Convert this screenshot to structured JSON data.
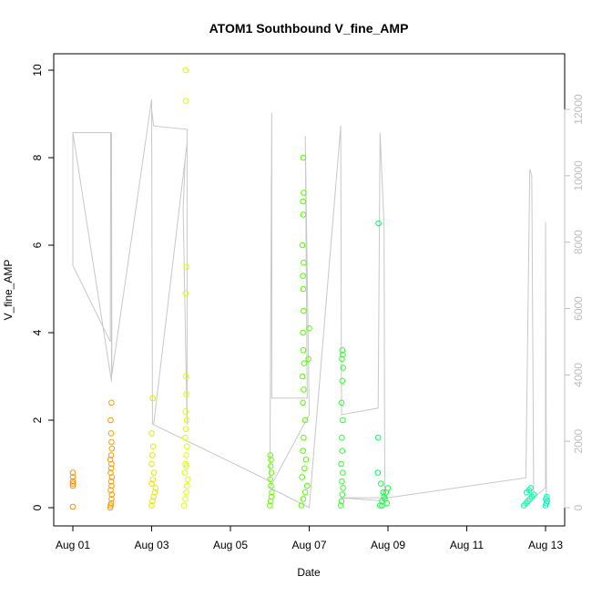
{
  "chart_data": {
    "type": "scatter",
    "title": "ATOM1 Southbound V_fine_AMP",
    "xlabel": "Date",
    "ylabel": "V_fine_AMP",
    "y2label": "",
    "x_ticks": [
      "Aug 01",
      "Aug 03",
      "Aug 05",
      "Aug 07",
      "Aug 09",
      "Aug 11",
      "Aug 13"
    ],
    "y_ticks": [
      "0",
      "2",
      "4",
      "6",
      "8",
      "10"
    ],
    "y2_ticks": [
      "0",
      "2000",
      "4000",
      "6000",
      "8000",
      "10000",
      "12000"
    ],
    "xlim": [
      0,
      12.4
    ],
    "ylim": [
      0,
      10.3
    ],
    "y2lim": [
      0,
      12600
    ],
    "grid": false,
    "legend": "none",
    "marker": "open-circle",
    "x_unit": "days since Aug 01",
    "series": [
      {
        "name": "",
        "color": "#FF8C00",
        "x_day": [
          0.0,
          0.0,
          0.0,
          0.0,
          0.0,
          0.0
        ],
        "values": [
          0.02,
          0.5,
          0.55,
          0.6,
          0.7,
          0.8
        ]
      },
      {
        "name": "",
        "color": "#FF9A00",
        "x_day": [
          0.95,
          0.96,
          0.97,
          0.98,
          0.99,
          0.96,
          0.98,
          0.97,
          0.99,
          0.96,
          0.97,
          0.98,
          0.95,
          0.97,
          0.99,
          0.98,
          0.97,
          0.96,
          0.98
        ],
        "values": [
          0.0,
          0.05,
          0.1,
          0.2,
          0.3,
          0.4,
          0.5,
          0.6,
          0.7,
          0.8,
          0.9,
          1.0,
          1.1,
          1.2,
          1.35,
          1.5,
          1.7,
          2.0,
          2.4
        ]
      },
      {
        "name": "",
        "color": "#E6E600",
        "x_day": [
          2.0,
          2.02,
          2.05,
          2.08,
          2.1,
          2.0,
          2.03,
          2.06,
          2.0,
          2.02,
          2.04,
          2.0,
          2.03
        ],
        "values": [
          0.05,
          0.15,
          0.25,
          0.35,
          0.45,
          0.55,
          0.65,
          0.8,
          1.0,
          1.2,
          1.4,
          1.7,
          2.5
        ]
      },
      {
        "name": "",
        "color": "#DDFF00",
        "x_day": [
          2.82,
          2.85,
          2.88,
          2.9,
          2.92,
          2.84,
          2.86,
          2.88,
          2.9,
          2.85,
          2.87,
          2.89,
          2.86,
          2.88,
          2.87,
          2.86,
          2.88,
          2.87,
          2.86,
          2.88
        ],
        "values": [
          0.05,
          0.2,
          0.35,
          0.5,
          0.65,
          0.8,
          1.0,
          1.2,
          1.4,
          1.6,
          1.8,
          2.0,
          2.2,
          2.6,
          3.0,
          4.9,
          5.5,
          9.3,
          10.0,
          0.95
        ]
      },
      {
        "name": "",
        "color": "#66FF00",
        "x_day": [
          5.0,
          5.02,
          5.04,
          5.05,
          5.03,
          5.01,
          5.04,
          5.02,
          5.03,
          5.01
        ],
        "values": [
          0.05,
          0.15,
          0.25,
          0.35,
          0.5,
          0.65,
          0.8,
          0.95,
          1.1,
          1.2
        ]
      },
      {
        "name": "",
        "color": "#55FF00",
        "x_day": [
          5.8,
          5.85,
          5.9,
          5.95,
          5.82,
          5.88,
          5.92,
          5.84,
          5.86,
          5.9,
          5.84,
          5.86,
          5.83,
          5.87,
          5.85,
          5.84,
          5.86,
          5.85,
          5.84,
          5.86,
          5.83,
          5.85,
          5.84,
          5.86,
          5.85,
          6.0,
          5.98
        ],
        "values": [
          0.05,
          0.2,
          0.35,
          0.5,
          0.7,
          0.9,
          1.1,
          1.3,
          1.6,
          2.0,
          2.4,
          2.7,
          3.0,
          3.3,
          3.6,
          4.0,
          4.5,
          5.0,
          5.3,
          5.6,
          6.0,
          6.7,
          7.0,
          7.2,
          8.0,
          4.1,
          3.4
        ]
      },
      {
        "name": "",
        "color": "#33FF33",
        "x_day": [
          6.8,
          6.82,
          6.84,
          6.86,
          6.83,
          6.85,
          6.81,
          6.84,
          6.83,
          6.85,
          6.82,
          6.84,
          6.86,
          6.83,
          6.85,
          6.84
        ],
        "values": [
          0.05,
          0.15,
          0.3,
          0.45,
          0.6,
          0.8,
          1.0,
          1.3,
          1.6,
          2.0,
          2.4,
          2.9,
          3.2,
          3.4,
          3.5,
          3.6
        ]
      },
      {
        "name": "",
        "color": "#11FF44",
        "x_day": [
          7.8,
          7.85,
          7.9,
          7.95,
          8.0,
          7.82,
          7.88,
          7.92,
          7.97,
          7.85
        ],
        "values": [
          0.05,
          0.15,
          0.25,
          0.35,
          0.45,
          0.55,
          0.35,
          0.2,
          0.1,
          0.05
        ]
      },
      {
        "name": "",
        "color": "#00FF55",
        "x_day": [
          7.74,
          7.75,
          7.76
        ],
        "values": [
          0.8,
          1.6,
          6.5
        ]
      },
      {
        "name": "",
        "color": "#00FFA0",
        "x_day": [
          11.45,
          11.5,
          11.55,
          11.6,
          11.65,
          11.7,
          11.52,
          11.58,
          11.62
        ],
        "values": [
          0.05,
          0.1,
          0.15,
          0.2,
          0.25,
          0.3,
          0.35,
          0.4,
          0.45
        ]
      },
      {
        "name": "",
        "color": "#00FFB0",
        "x_day": [
          12.0,
          12.02,
          12.04,
          12.01,
          12.03
        ],
        "values": [
          0.05,
          0.1,
          0.15,
          0.2,
          0.25
        ]
      }
    ],
    "gray_line": {
      "color": "#C8C8C8",
      "description": "secondary-axis trace",
      "points": [
        [
          0.0,
          11300
        ],
        [
          0.0,
          7300
        ],
        [
          0.95,
          5000
        ],
        [
          0.96,
          11300
        ],
        [
          0.0,
          11300
        ],
        [
          0.98,
          3800
        ],
        [
          0.98,
          11300
        ],
        [
          0.99,
          5500
        ],
        [
          0.99,
          4000
        ],
        [
          2.0,
          12300
        ],
        [
          2.02,
          2500
        ],
        [
          2.0,
          12000
        ],
        [
          2.05,
          11500
        ],
        [
          2.9,
          11400
        ],
        [
          2.9,
          2500
        ],
        [
          2.8,
          9000
        ],
        [
          2.85,
          10500
        ],
        [
          2.9,
          11000
        ],
        [
          2.05,
          2500
        ],
        [
          5.0,
          800
        ],
        [
          5.05,
          11900
        ],
        [
          5.05,
          3300
        ],
        [
          5.95,
          3300
        ],
        [
          5.9,
          11200
        ],
        [
          6.0,
          2800
        ],
        [
          5.0,
          600
        ],
        [
          6.0,
          0
        ],
        [
          6.8,
          11500
        ],
        [
          6.82,
          2800
        ],
        [
          7.75,
          3000
        ],
        [
          7.8,
          11300
        ],
        [
          7.9,
          8500
        ],
        [
          7.92,
          200
        ],
        [
          6.8,
          300
        ],
        [
          8.0,
          300
        ],
        [
          11.5,
          900
        ],
        [
          11.6,
          10200
        ],
        [
          11.65,
          10000
        ],
        [
          11.7,
          300
        ],
        [
          12.0,
          600
        ],
        [
          12.0,
          8600
        ],
        [
          12.02,
          300
        ]
      ]
    }
  }
}
